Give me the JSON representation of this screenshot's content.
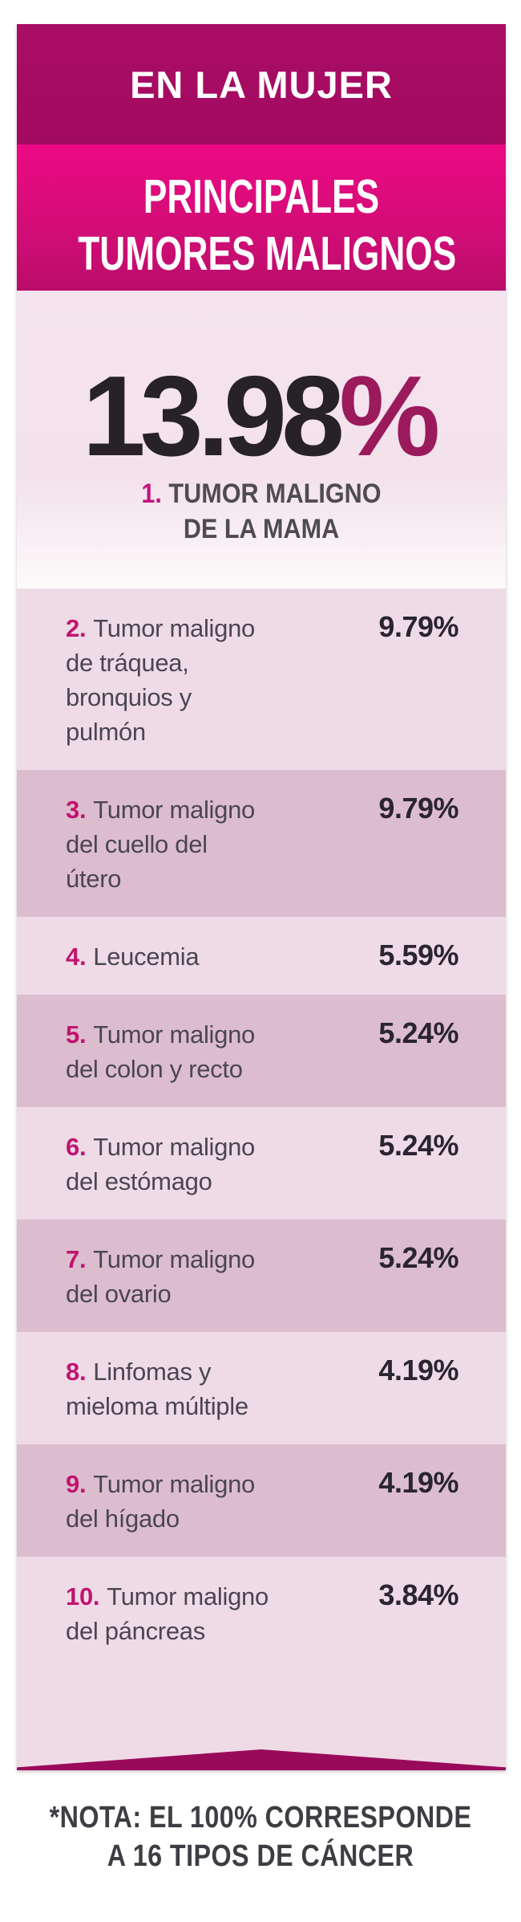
{
  "header": {
    "kicker": "EN LA MUJER",
    "title_line1": "PRINCIPALES",
    "title_line2": "TUMORES MALIGNOS"
  },
  "hero": {
    "value": "13.98",
    "percent_sign": "%",
    "rank": "1.",
    "label_line1": "TUMOR MALIGNO",
    "label_line2": "DE LA MAMA"
  },
  "rows": [
    {
      "rank": "2.",
      "lines": [
        "Tumor maligno",
        "de tráquea,",
        "bronquios y",
        "pulmón"
      ],
      "value": "9.79%",
      "shade": "light"
    },
    {
      "rank": "3.",
      "lines": [
        "Tumor maligno",
        "del cuello del",
        "útero"
      ],
      "value": "9.79%",
      "shade": "dark"
    },
    {
      "rank": "4.",
      "lines": [
        "Leucemia"
      ],
      "value": "5.59%",
      "shade": "light"
    },
    {
      "rank": "5.",
      "lines": [
        "Tumor maligno",
        "del colon y recto"
      ],
      "value": "5.24%",
      "shade": "dark"
    },
    {
      "rank": "6.",
      "lines": [
        "Tumor maligno",
        "del estómago"
      ],
      "value": "5.24%",
      "shade": "light"
    },
    {
      "rank": "7.",
      "lines": [
        "Tumor maligno",
        "del ovario"
      ],
      "value": "5.24%",
      "shade": "dark"
    },
    {
      "rank": "8.",
      "lines": [
        "Linfomas y",
        "mieloma múltiple"
      ],
      "value": "4.19%",
      "shade": "light"
    },
    {
      "rank": "9.",
      "lines": [
        "Tumor maligno",
        "del hígado"
      ],
      "value": "4.19%",
      "shade": "dark"
    },
    {
      "rank": "10.",
      "lines": [
        "Tumor maligno",
        "del páncreas"
      ],
      "value": "3.84%",
      "shade": "light"
    }
  ],
  "note": {
    "line1": "*NOTA: EL 100% CORRESPONDE",
    "line2": "A 16 TIPOS DE CÁNCER"
  },
  "colors": {
    "band_dark_magenta": "#A20A5F",
    "band_bright_pink_top": "#EC0A84",
    "band_bright_pink_bottom": "#9C0C5C",
    "hero_background": "#F3E1EB",
    "row_light": "#EFDBE6",
    "row_dark": "#DCBDCE",
    "rank_accent": "#C1146F",
    "percent_dark_text": "#2A2530",
    "hero_percent_sign": "#9A1A5C",
    "body_text": "#4B4651",
    "note_text": "#3E3D43",
    "bottom_chevron": "#9A0A5B"
  },
  "chart_data": {
    "type": "table",
    "title": "PRINCIPALES TUMORES MALIGNOS",
    "subtitle": "EN LA MUJER",
    "categories": [
      "Tumor maligno de la mama",
      "Tumor maligno de tráquea, bronquios y pulmón",
      "Tumor maligno del cuello del útero",
      "Leucemia",
      "Tumor maligno del colon y recto",
      "Tumor maligno del estómago",
      "Tumor maligno del ovario",
      "Linfomas y mieloma múltiple",
      "Tumor maligno del hígado",
      "Tumor maligno del páncreas"
    ],
    "values": [
      13.98,
      9.79,
      9.79,
      5.59,
      5.24,
      5.24,
      5.24,
      4.19,
      4.19,
      3.84
    ],
    "units": "%",
    "note": "*NOTA: EL 100% CORRESPONDE A 16 TIPOS DE CÁNCER"
  }
}
